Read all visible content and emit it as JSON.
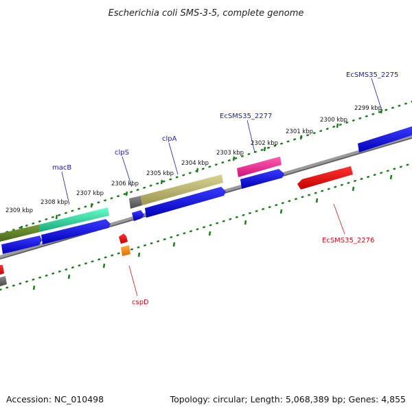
{
  "title": "Escherichia coli SMS-3-5, complete genome",
  "footer": {
    "accession": "Accession: NC_010498",
    "summary": "Topology: circular; Length: 5,068,389 bp; Genes: 4,855"
  },
  "colors": {
    "backbone": "#8c8c8c",
    "ruler": "#1f7a1f",
    "label_forward": "#1a1aa6",
    "label_reverse": "#cc1111"
  },
  "ticks": [
    "2299 kbp",
    "2300 kbp",
    "2301 kbp",
    "2302 kbp",
    "2303 kbp",
    "2304 kbp",
    "2305 kbp",
    "2306 kbp",
    "2307 kbp",
    "2308 kbp",
    "2309 kbp"
  ],
  "genes": {
    "ecsms35_2275": "EcSMS35_2275",
    "ecsms35_2277": "EcSMS35_2277",
    "clpA": "clpA",
    "clpS": "clpS",
    "macB": "macB",
    "ecsms35_2276": "EcSMS35_2276",
    "cspD": "cspD"
  }
}
